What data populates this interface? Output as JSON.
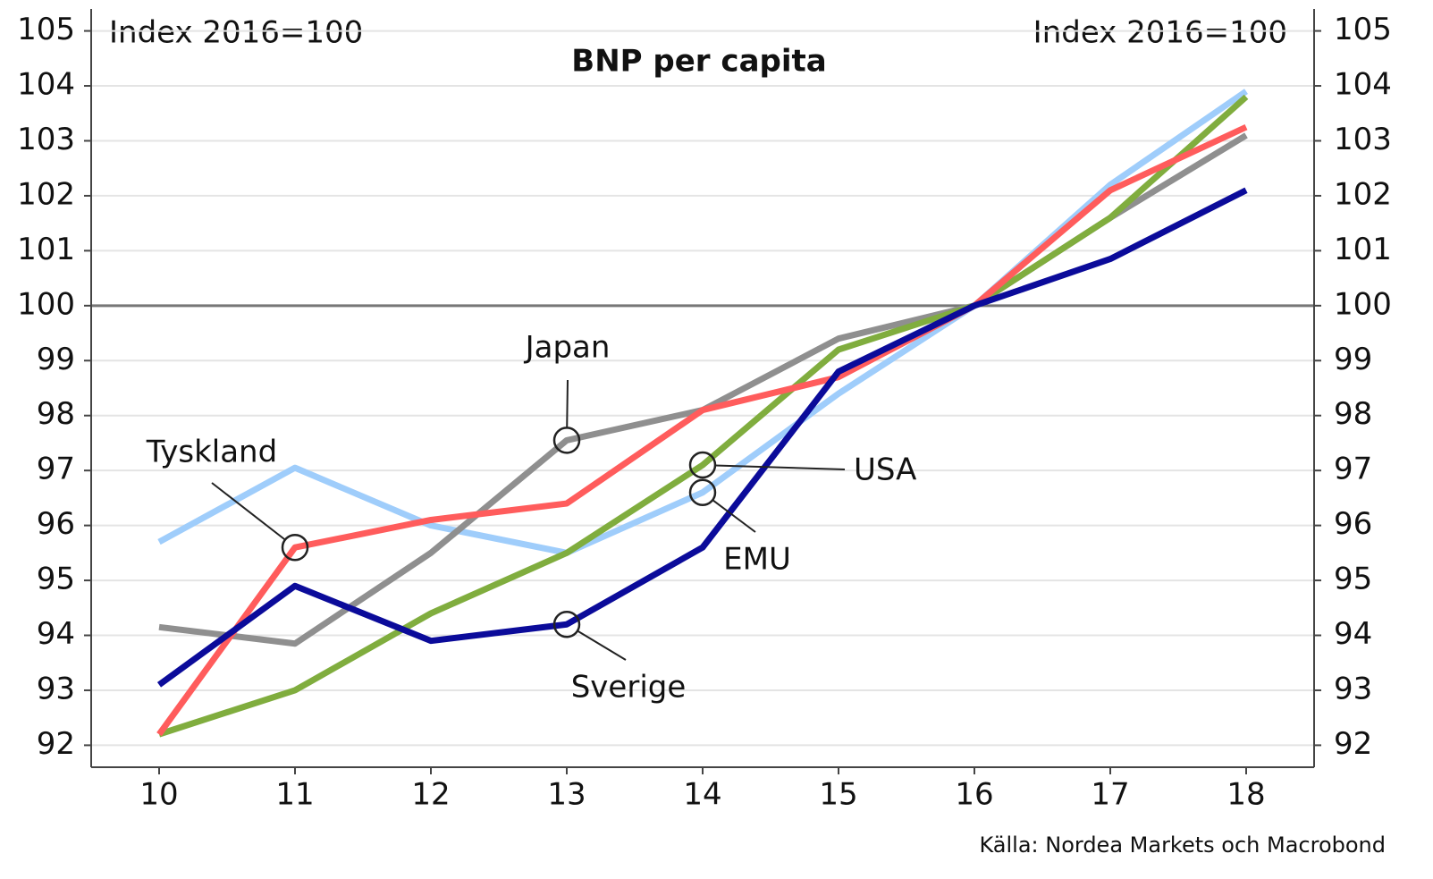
{
  "chart_data": {
    "type": "line",
    "title": "BNP per capita",
    "ylabel": "Index 2016=100",
    "y2label": "Index 2016=100",
    "source": "Källa: Nordea Markets och Macrobond",
    "x": [
      10,
      11,
      12,
      13,
      14,
      15,
      16,
      17,
      18
    ],
    "xlim": [
      9.5,
      18.5
    ],
    "xticks": [
      10,
      11,
      12,
      13,
      14,
      15,
      16,
      17,
      18
    ],
    "ylim": [
      91.6,
      105.4
    ],
    "yticks": [
      92,
      93,
      94,
      95,
      96,
      97,
      98,
      99,
      100,
      101,
      102,
      103,
      104,
      105
    ],
    "y2lim": [
      91.6,
      105.4
    ],
    "y2ticks": [
      92,
      93,
      94,
      95,
      96,
      97,
      98,
      99,
      100,
      101,
      102,
      103,
      104,
      105
    ],
    "reference_line": 100,
    "grid": true,
    "series": [
      {
        "name": "EMU",
        "color": "#9fcdfb",
        "values": [
          95.7,
          97.05,
          96.0,
          95.5,
          96.6,
          98.4,
          100,
          102.2,
          103.9
        ]
      },
      {
        "name": "Japan",
        "color": "#8f8f8f",
        "values": [
          94.15,
          93.85,
          95.5,
          97.55,
          98.1,
          99.4,
          100,
          101.6,
          103.1
        ]
      },
      {
        "name": "USA",
        "color": "#80ad3e",
        "values": [
          92.2,
          93.0,
          94.4,
          95.5,
          97.1,
          99.2,
          100,
          101.6,
          103.8
        ]
      },
      {
        "name": "Tyskland",
        "color": "#ff5c5c",
        "values": [
          92.2,
          95.6,
          96.1,
          96.4,
          98.1,
          98.7,
          100,
          102.1,
          103.25
        ]
      },
      {
        "name": "Sverige",
        "color": "#0b0b9a",
        "values": [
          93.1,
          94.9,
          93.9,
          94.2,
          95.6,
          98.8,
          100,
          100.85,
          102.1
        ]
      }
    ]
  }
}
